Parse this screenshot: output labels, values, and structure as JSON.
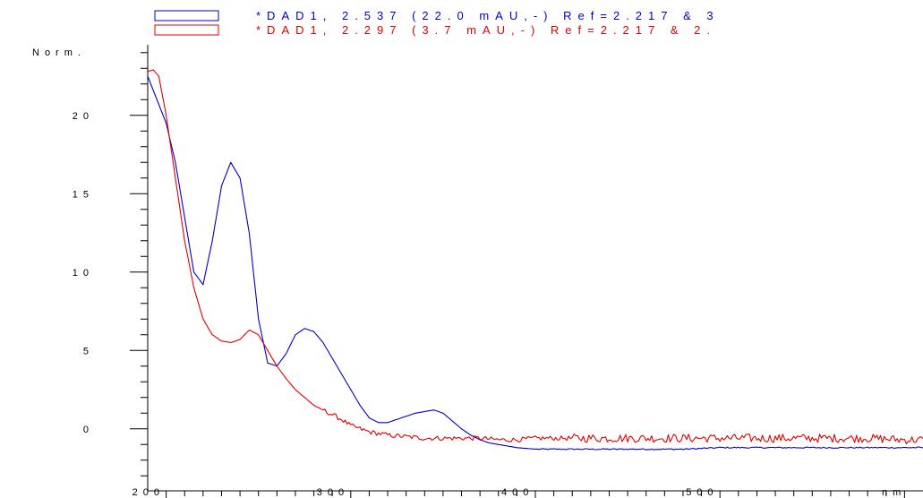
{
  "chart_data": {
    "type": "line",
    "ylabel": "Norm.",
    "xlabel": "nm",
    "xlim": [
      190,
      610
    ],
    "ylim": [
      -3.5,
      24.5
    ],
    "x_ticks": [
      "200",
      "300",
      "400",
      "500"
    ],
    "y_ticks": [
      "0",
      "5",
      "10",
      "15",
      "20"
    ],
    "legend_position": "top",
    "series": [
      {
        "name": "*DAD1, 2.537 (22.0 mAU,-) Ref=2.217 & 3",
        "color": "#0000cc",
        "x": [
          190,
          195,
          200,
          205,
          210,
          215,
          220,
          225,
          230,
          235,
          240,
          245,
          250,
          255,
          260,
          265,
          270,
          275,
          280,
          285,
          290,
          295,
          300,
          305,
          310,
          315,
          320,
          325,
          330,
          335,
          340,
          345,
          350,
          355,
          360,
          365,
          370,
          375,
          380,
          385,
          390,
          400,
          420,
          440,
          460,
          480,
          500,
          520,
          540,
          560,
          580,
          600,
          610
        ],
        "y": [
          22.5,
          21.0,
          19.5,
          17.0,
          13.5,
          10.0,
          9.2,
          12.0,
          15.5,
          17.0,
          16.0,
          12.5,
          7.0,
          4.2,
          4.0,
          4.8,
          6.0,
          6.4,
          6.2,
          5.5,
          4.5,
          3.5,
          2.5,
          1.5,
          0.7,
          0.4,
          0.4,
          0.6,
          0.8,
          1.0,
          1.1,
          1.2,
          1.0,
          0.5,
          0.0,
          -0.4,
          -0.7,
          -0.9,
          -1.0,
          -1.1,
          -1.2,
          -1.3,
          -1.3,
          -1.3,
          -1.3,
          -1.3,
          -1.2,
          -1.2,
          -1.2,
          -1.2,
          -1.2,
          -1.2,
          -1.2
        ]
      },
      {
        "name": "*DAD1, 2.297 (3.7 mAU,-) Ref=2.217 & 2.",
        "color": "#e00000",
        "x": [
          190,
          193,
          196,
          200,
          205,
          210,
          215,
          220,
          225,
          230,
          235,
          240,
          245,
          250,
          255,
          260,
          265,
          270,
          275,
          280,
          285,
          290,
          295,
          300,
          305,
          310,
          320,
          330,
          340,
          350,
          360,
          370,
          380,
          390,
          400,
          420,
          440,
          460,
          480,
          500,
          520,
          540,
          560,
          580,
          600,
          610
        ],
        "y": [
          22.8,
          22.9,
          22.5,
          20.0,
          16.0,
          12.0,
          9.0,
          7.0,
          6.0,
          5.6,
          5.5,
          5.7,
          6.3,
          6.0,
          5.0,
          4.0,
          3.2,
          2.5,
          2.0,
          1.5,
          1.2,
          0.9,
          0.6,
          0.2,
          0.0,
          -0.2,
          -0.4,
          -0.5,
          -0.6,
          -0.6,
          -0.6,
          -0.6,
          -0.7,
          -0.7,
          -0.6,
          -0.6,
          -0.6,
          -0.6,
          -0.6,
          -0.6,
          -0.6,
          -0.6,
          -0.6,
          -0.6,
          -0.7,
          -0.7
        ]
      }
    ],
    "red_noise_from_x": 285
  }
}
